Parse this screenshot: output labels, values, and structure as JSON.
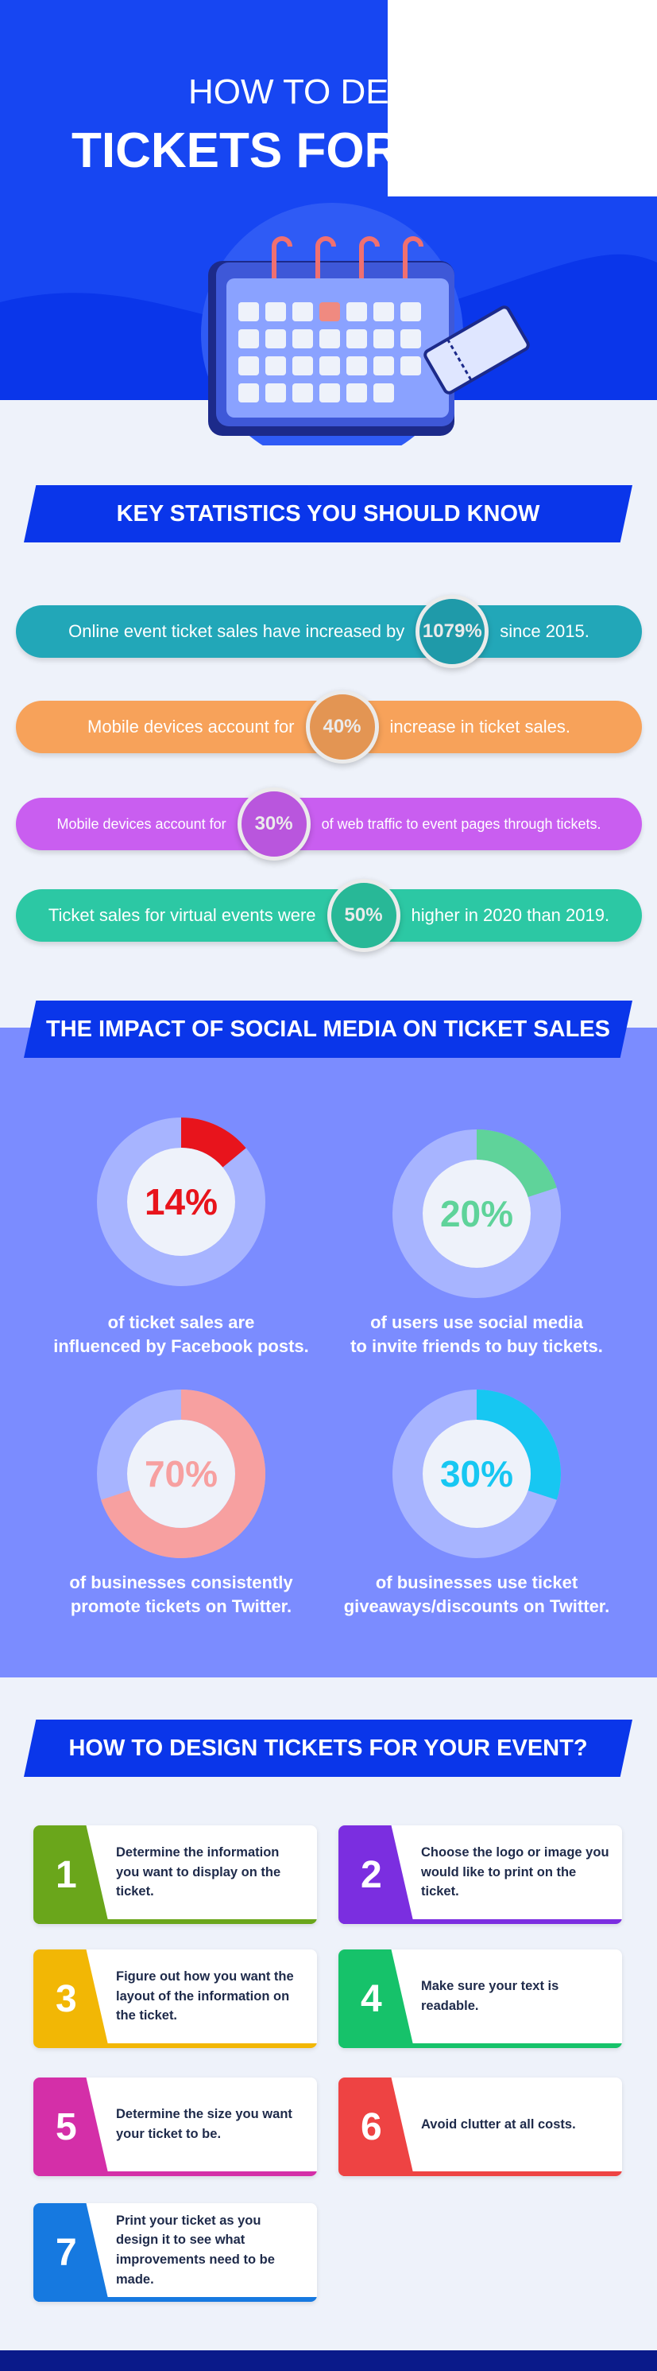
{
  "header": {
    "title_line1": "HOW TO DE",
    "title_line2": "TICKETS FOR"
  },
  "statistics": {
    "heading": "KEY STATISTICS YOU SHOULD KNOW",
    "items": [
      {
        "before": "Online event ticket sales have increased by",
        "highlight": "1079%",
        "after": "since 2015.",
        "color": "#22a7b8"
      },
      {
        "before": "Mobile devices account for",
        "highlight": "40%",
        "after": "increase in ticket sales.",
        "color": "#f7a25a"
      },
      {
        "before": "Mobile devices account for",
        "highlight": "30%",
        "after": "of web traffic to event pages through tickets.",
        "color": "#c95ef0"
      },
      {
        "before": "Ticket sales for virtual events were",
        "highlight": "50%",
        "after": "higher in 2020 than 2019.",
        "color": "#2cc8a4"
      }
    ]
  },
  "social": {
    "heading": "THE IMPACT OF SOCIAL MEDIA ON TICKET SALES",
    "items": [
      {
        "value": 14,
        "label": "14%",
        "caption": [
          "of ticket sales are",
          "influenced by Facebook posts."
        ],
        "color": "#e8141c"
      },
      {
        "value": 20,
        "label": "20%",
        "caption": [
          "of users use social media",
          "to invite friends to buy tickets."
        ],
        "color": "#5fd39a"
      },
      {
        "value": 70,
        "label": "70%",
        "caption": [
          "of businesses consistently",
          "promote tickets on Twitter."
        ],
        "color": "#f7a0a0"
      },
      {
        "value": 30,
        "label": "30%",
        "caption": [
          "of businesses use ticket",
          "giveaways/discounts on Twitter."
        ],
        "color": "#17c7f2"
      }
    ]
  },
  "steps": {
    "heading": "HOW TO DESIGN TICKETS FOR YOUR EVENT?",
    "items": [
      {
        "number": 1,
        "text": "Determine the information you want to display on the ticket.",
        "color": "#6aa61b"
      },
      {
        "number": 2,
        "text": "Choose the logo or image you would like to print on the ticket.",
        "color": "#7b2ee0"
      },
      {
        "number": 3,
        "text": "Figure out how you want the layout of the information on the ticket.",
        "color": "#f2b705"
      },
      {
        "number": 4,
        "text": "Make sure your text is readable.",
        "color": "#16c26a"
      },
      {
        "number": 5,
        "text": "Determine the size you want your ticket to be.",
        "color": "#d42fa8"
      },
      {
        "number": 6,
        "text": "Avoid clutter at all costs.",
        "color": "#ee4343"
      },
      {
        "number": 7,
        "text": "Print your ticket as you design it to see what improvements need to be made.",
        "color": "#1679e0"
      }
    ]
  }
}
